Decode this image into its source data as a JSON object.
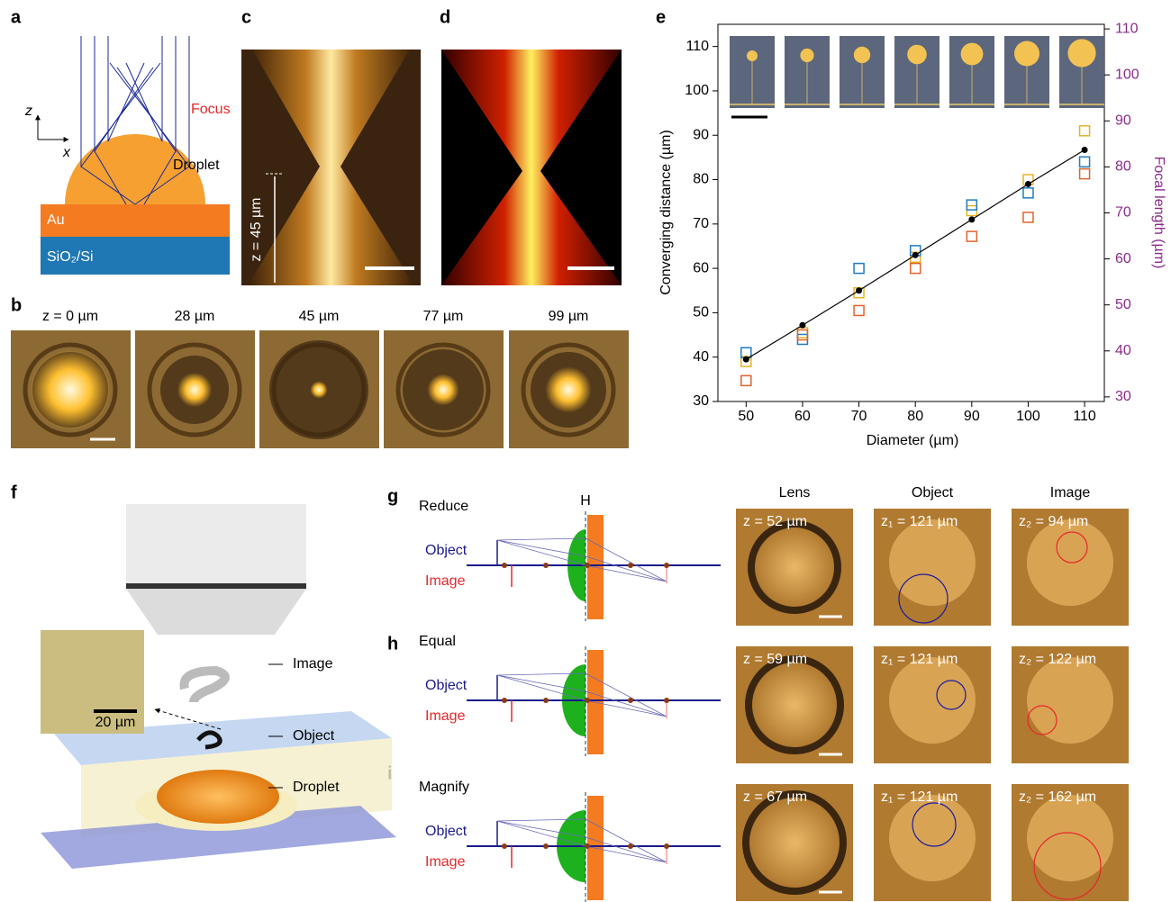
{
  "panel_labels": [
    "a",
    "b",
    "c",
    "d",
    "e",
    "f",
    "g",
    "h",
    "i"
  ],
  "a": {
    "z": "z",
    "x": "x",
    "focus": "Focus",
    "droplet": "Droplet",
    "layers": [
      "Au",
      "SiO₂/Si"
    ]
  },
  "b": {
    "depths": [
      "z = 0 µm",
      "28 µm",
      "45 µm",
      "77 µm",
      "99 µm"
    ]
  },
  "c": {
    "height": "z = 45 µm"
  },
  "chart_data": {
    "type": "scatter",
    "xlabel": "Diameter (µm)",
    "ylabel": "Converging distance (µm)",
    "y2label": "Focal length (µm)",
    "y2_color": "#8b2b8b",
    "x": [
      50,
      60,
      70,
      80,
      90,
      100,
      110
    ],
    "xlim": [
      45,
      113.5
    ],
    "xticks": [
      50,
      60,
      70,
      80,
      90,
      100,
      110
    ],
    "ylim": [
      30,
      115
    ],
    "yticks": [
      30,
      40,
      50,
      60,
      70,
      80,
      90,
      100,
      110
    ],
    "y2lim": [
      29,
      111
    ],
    "y2ticks": [
      30,
      40,
      50,
      60,
      70,
      80,
      90,
      100,
      110
    ],
    "series": [
      {
        "color": "#e6b422",
        "marker": "square",
        "values": [
          39,
          45.5,
          54.5,
          62.5,
          73,
          80,
          91
        ]
      },
      {
        "color": "#1f7bc1",
        "marker": "square",
        "values": [
          41,
          44,
          60,
          64,
          74.3,
          77,
          84
        ]
      },
      {
        "color": "#e0622a",
        "marker": "square",
        "values": [
          34.7,
          45,
          50.5,
          60,
          67.2,
          71.5,
          81.3
        ]
      },
      {
        "color": "#000000",
        "marker": "circle",
        "line": true,
        "values": [
          39.5,
          47.2,
          55,
          63,
          71,
          79,
          86.7
        ]
      }
    ]
  },
  "f": {
    "labels": [
      "Image",
      "Object",
      "Droplet"
    ],
    "scale": "20 µm"
  },
  "rays": [
    {
      "title": "Reduce",
      "object": "Object",
      "image": "Image"
    },
    {
      "title": "Equal",
      "object": "Object",
      "image": "Image"
    },
    {
      "title": "Magnify",
      "object": "Object",
      "image": "Image"
    }
  ],
  "principal_plane": "H",
  "columns": [
    "Lens",
    "Object",
    "Image"
  ],
  "rows": [
    [
      "z = 52 µm",
      "z₁ = 121 µm",
      "z₂ = 94 µm"
    ],
    [
      "z = 59 µm",
      "z₁ = 121 µm",
      "z₂ = 122 µm"
    ],
    [
      "z = 67 µm",
      "z₁ = 121 µm",
      "z₂ = 162 µm"
    ]
  ]
}
